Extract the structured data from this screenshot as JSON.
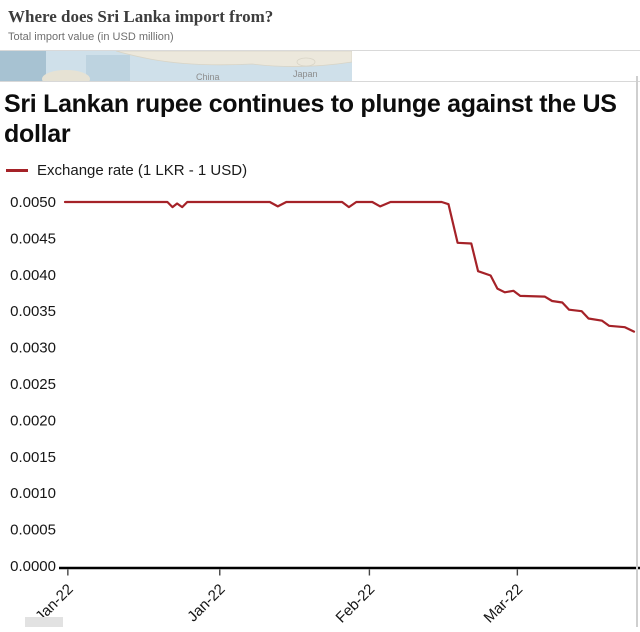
{
  "top_card": {
    "title": "Where does Sri Lanka import from?",
    "subtitle": "Total import value (in USD million)",
    "map_labels": [
      "China",
      "Japan"
    ]
  },
  "main": {
    "title": "Sri Lankan rupee continues to plunge against the US dollar",
    "legend_label": "Exchange rate (1 LKR - 1 USD)"
  },
  "colors": {
    "line": "#a52228",
    "axis": "#000000",
    "map_water": "#cfe0ea",
    "map_land": "#ece8dc"
  },
  "chart_data": {
    "type": "line",
    "title": "Sri Lankan rupee continues to plunge against the US dollar",
    "series_name": "Exchange rate (1 LKR - 1 USD)",
    "xlabel": "",
    "ylabel": "",
    "ylim": [
      0,
      0.005
    ],
    "grid": false,
    "legend_position": "top-left",
    "y_ticks": [
      "0.0000",
      "0.0005",
      "0.0010",
      "0.0015",
      "0.0020",
      "0.0025",
      "0.0030",
      "0.0035",
      "0.0040",
      "0.0045",
      "0.0050"
    ],
    "x_tick_labels": [
      "Jan-22",
      "Jan-22",
      "Feb-22",
      "Mar-22"
    ],
    "x_tick_pos": [
      0.005,
      0.272,
      0.535,
      0.795
    ],
    "points": [
      [
        0.0,
        0.005
      ],
      [
        0.18,
        0.005
      ],
      [
        0.189,
        0.00493
      ],
      [
        0.197,
        0.00498
      ],
      [
        0.206,
        0.00493
      ],
      [
        0.215,
        0.005
      ],
      [
        0.36,
        0.005
      ],
      [
        0.374,
        0.00494
      ],
      [
        0.389,
        0.005
      ],
      [
        0.487,
        0.005
      ],
      [
        0.499,
        0.00493
      ],
      [
        0.512,
        0.005
      ],
      [
        0.54,
        0.005
      ],
      [
        0.554,
        0.00494
      ],
      [
        0.572,
        0.005
      ],
      [
        0.662,
        0.005
      ],
      [
        0.674,
        0.00497
      ],
      [
        0.69,
        0.00444
      ],
      [
        0.714,
        0.00443
      ],
      [
        0.726,
        0.00405
      ],
      [
        0.748,
        0.00399
      ],
      [
        0.76,
        0.00381
      ],
      [
        0.773,
        0.00376
      ],
      [
        0.788,
        0.00378
      ],
      [
        0.8,
        0.00371
      ],
      [
        0.843,
        0.0037
      ],
      [
        0.856,
        0.00364
      ],
      [
        0.874,
        0.00362
      ],
      [
        0.886,
        0.00352
      ],
      [
        0.908,
        0.0035
      ],
      [
        0.92,
        0.0034
      ],
      [
        0.944,
        0.00337
      ],
      [
        0.956,
        0.0033
      ],
      [
        0.984,
        0.00328
      ],
      [
        1.0,
        0.00322
      ]
    ]
  }
}
